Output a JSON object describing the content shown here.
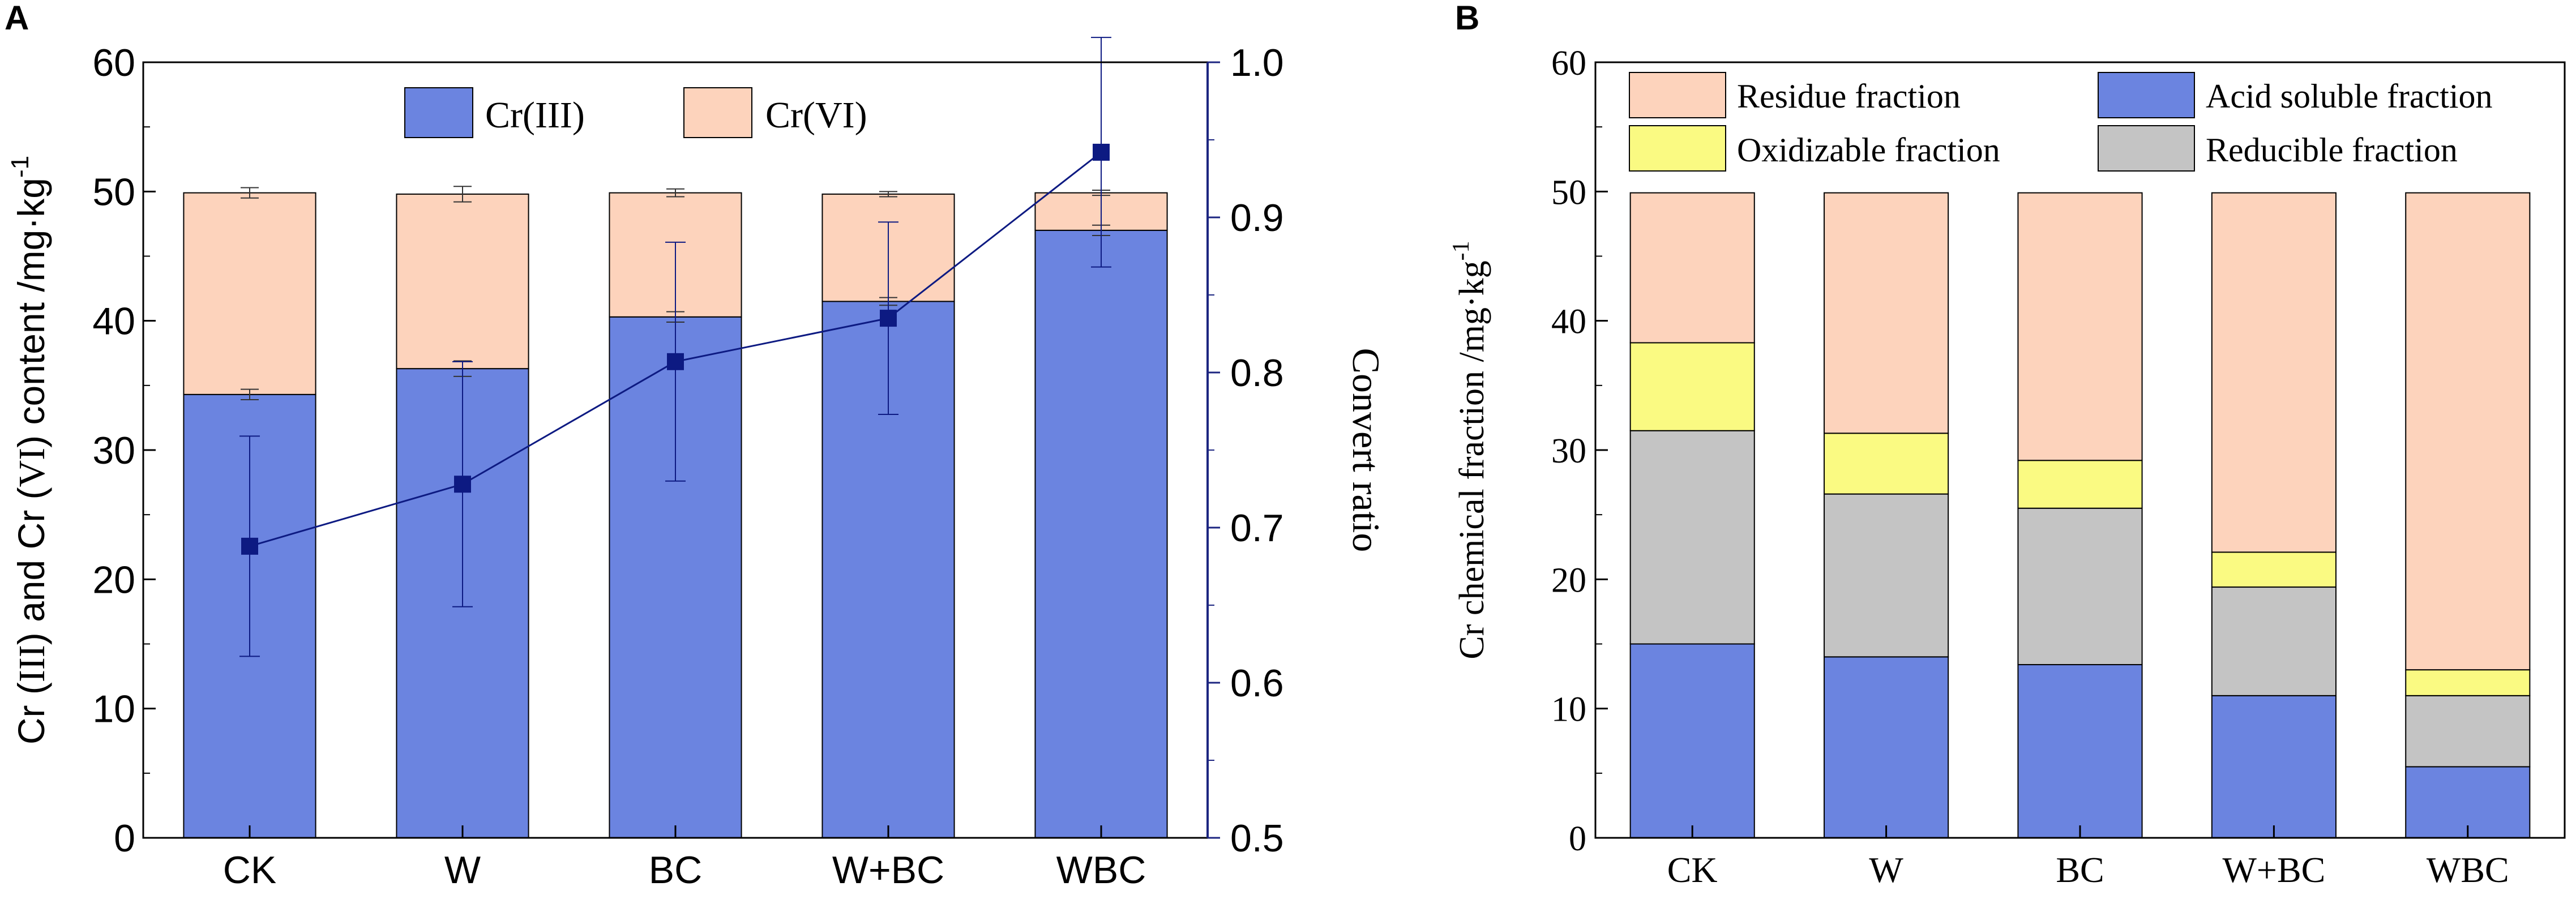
{
  "colors": {
    "cr3": "#6b84e0",
    "cr6": "#fdd3bc",
    "acid": "#6b84e0",
    "reducible": "#c4c4c4",
    "oxidizable": "#fafa82",
    "residue": "#fdd3bc",
    "line": "#0d1a82",
    "right_axis": "#1c2580",
    "black": "#000000"
  },
  "chart_data": [
    {
      "panel": "A",
      "type": "bar",
      "stacked": true,
      "categories": [
        "CK",
        "W",
        "BC",
        "W+BC",
        "WBC"
      ],
      "series": [
        {
          "name": "Cr(III)",
          "values": [
            34.3,
            36.3,
            40.3,
            41.5,
            47.0
          ],
          "errors": [
            0.4,
            0.6,
            0.4,
            0.3,
            0.4
          ]
        },
        {
          "name": "Cr(VI)",
          "values": [
            15.6,
            13.5,
            9.6,
            8.3,
            2.9
          ],
          "errors": [
            0.4,
            0.6,
            0.3,
            0.2,
            0.2
          ]
        }
      ],
      "line_series": {
        "name": "Convert ratio",
        "axis": "right",
        "values": [
          0.688,
          0.728,
          0.807,
          0.835,
          0.942
        ],
        "errors": [
          0.071,
          0.079,
          0.077,
          0.062,
          0.074
        ]
      },
      "ylabel_parts": [
        "Cr (",
        "III",
        ") and Cr (",
        "VI",
        ") content /mg·kg",
        "-1"
      ],
      "y2label": "Convert ratio",
      "ylim": [
        0,
        60
      ],
      "yticks": [
        0,
        10,
        20,
        30,
        40,
        50,
        60
      ],
      "y2lim": [
        0.5,
        1.0
      ],
      "y2ticks": [
        "0.5",
        "0.6",
        "0.7",
        "0.8",
        "0.9",
        "1.0"
      ],
      "legend": [
        "Cr(III)",
        "Cr(VI)"
      ],
      "legend_position": "top-center",
      "grid": false
    },
    {
      "panel": "B",
      "type": "bar",
      "stacked": true,
      "categories": [
        "CK",
        "W",
        "BC",
        "W+BC",
        "WBC"
      ],
      "series": [
        {
          "name": "Acid soluble fraction",
          "values": [
            15.0,
            14.0,
            13.4,
            11.0,
            5.5
          ]
        },
        {
          "name": "Reducible fraction",
          "values": [
            16.5,
            12.6,
            12.1,
            8.4,
            5.5
          ]
        },
        {
          "name": "Oxidizable fraction",
          "values": [
            6.8,
            4.7,
            3.7,
            2.7,
            2.0
          ]
        },
        {
          "name": "Residue fraction",
          "values": [
            11.6,
            18.6,
            20.7,
            27.8,
            36.9
          ]
        }
      ],
      "ylabel_parts": [
        "Cr chemical fraction /mg·kg",
        "-1"
      ],
      "ylim": [
        0,
        60
      ],
      "yticks": [
        0,
        10,
        20,
        30,
        40,
        50,
        60
      ],
      "legend": [
        "Residue fraction",
        "Acid soluble fraction",
        "Oxidizable fraction",
        "Reducible fraction"
      ],
      "legend_position": "top",
      "grid": false
    }
  ],
  "panel_labels": {
    "a": "A",
    "b": "B"
  }
}
